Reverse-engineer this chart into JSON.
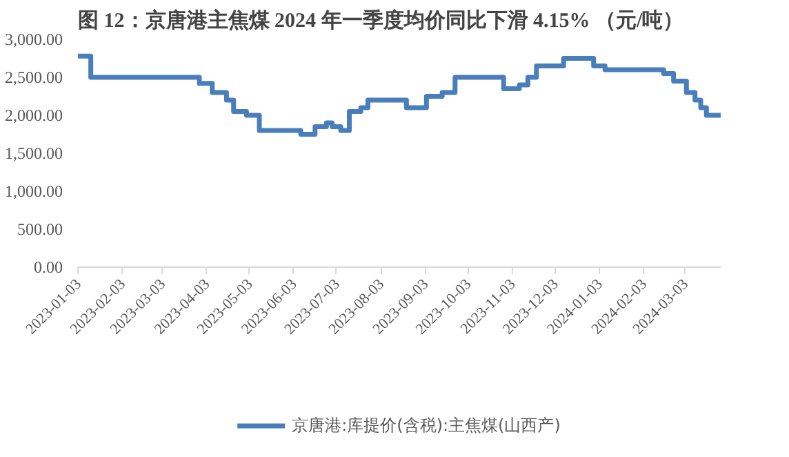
{
  "chart_data": {
    "type": "step",
    "title": "图 12：京唐港主焦煤 2024 年一季度均价同比下滑 4.15% （元/吨）",
    "x": [
      "2023-01-03",
      "2023-01-12",
      "2023-03-29",
      "2023-04-07",
      "2023-04-17",
      "2023-04-22",
      "2023-05-01",
      "2023-05-10",
      "2023-06-08",
      "2023-06-18",
      "2023-06-26",
      "2023-06-30",
      "2023-07-06",
      "2023-07-12",
      "2023-07-20",
      "2023-07-25",
      "2023-08-21",
      "2023-09-04",
      "2023-09-15",
      "2023-09-24",
      "2023-10-28",
      "2023-11-08",
      "2023-11-14",
      "2023-11-20",
      "2023-12-09",
      "2023-12-30",
      "2024-01-07",
      "2024-02-17",
      "2024-02-24",
      "2024-03-04",
      "2024-03-10",
      "2024-03-14",
      "2024-03-18",
      "2024-03-28"
    ],
    "series": [
      {
        "name": "京唐港:库提价(含税):主焦煤(山西产)",
        "color": "#4a7ebb",
        "values": [
          2780,
          2500,
          2420,
          2300,
          2200,
          2050,
          2000,
          1800,
          1750,
          1850,
          1900,
          1850,
          1800,
          2050,
          2100,
          2200,
          2100,
          2250,
          2300,
          2500,
          2350,
          2400,
          2500,
          2650,
          2750,
          2650,
          2600,
          2550,
          2450,
          2300,
          2200,
          2100,
          2000,
          2000
        ]
      }
    ],
    "xlim": [
      "2023-01-03",
      "2024-03-28"
    ],
    "xticks": [
      "2023-01-03",
      "2023-02-03",
      "2023-03-03",
      "2023-04-03",
      "2023-05-03",
      "2023-06-03",
      "2023-07-03",
      "2023-08-03",
      "2023-09-03",
      "2023-10-03",
      "2023-11-03",
      "2023-12-03",
      "2024-01-03",
      "2024-02-03",
      "2024-03-03"
    ],
    "ylim": [
      0,
      3000
    ],
    "yticks": [
      {
        "value": 0,
        "label": "0.00"
      },
      {
        "value": 500,
        "label": "500.00"
      },
      {
        "value": 1000,
        "label": "1,000.00"
      },
      {
        "value": 1500,
        "label": "1,500.00"
      },
      {
        "value": 2000,
        "label": "2,000.00"
      },
      {
        "value": 2500,
        "label": "2,500.00"
      },
      {
        "value": 3000,
        "label": "3,000.00"
      }
    ],
    "grid": false,
    "legend": "bottom",
    "line_style": "solid"
  }
}
